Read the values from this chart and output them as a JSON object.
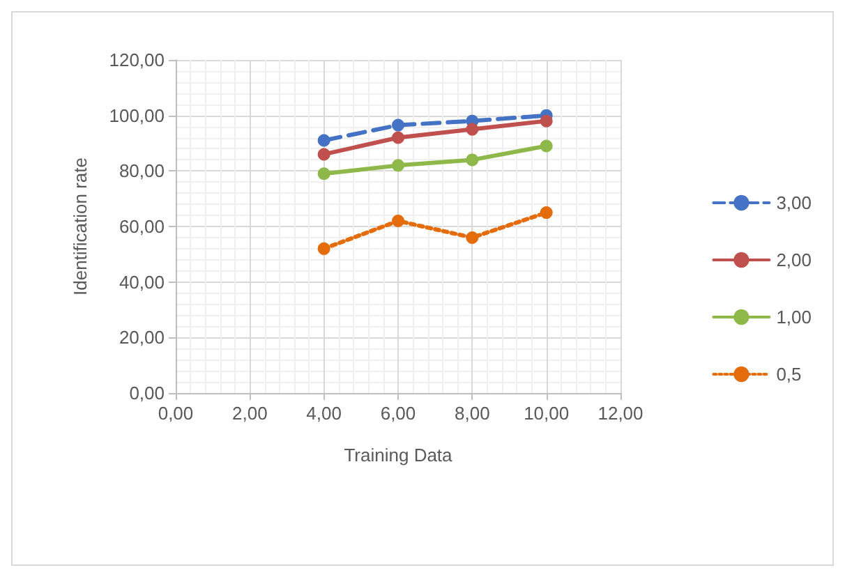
{
  "chart_data": {
    "type": "line",
    "xlabel": "Training Data",
    "ylabel": "Identification rate",
    "x": [
      4,
      6,
      8,
      10
    ],
    "series": [
      {
        "name": "3,00",
        "color": "#4472c4",
        "line_style": "dashed",
        "values": [
          91,
          96.5,
          98,
          100
        ]
      },
      {
        "name": "2,00",
        "color": "#c0504d",
        "line_style": "solid",
        "values": [
          86,
          92,
          95,
          98
        ]
      },
      {
        "name": "1,00",
        "color": "#8fb84a",
        "line_style": "solid",
        "values": [
          79,
          82,
          84,
          89
        ]
      },
      {
        "name": "0,5",
        "color": "#e46c0a",
        "line_style": "dotted",
        "values": [
          52,
          62,
          56,
          65
        ]
      }
    ],
    "xlim": [
      0,
      12
    ],
    "xticks": [
      {
        "value": 0,
        "label": "0,00"
      },
      {
        "value": 2,
        "label": "2,00"
      },
      {
        "value": 4,
        "label": "4,00"
      },
      {
        "value": 6,
        "label": "6,00"
      },
      {
        "value": 8,
        "label": "8,00"
      },
      {
        "value": 10,
        "label": "10,00"
      },
      {
        "value": 12,
        "label": "12,00"
      }
    ],
    "ylim": [
      0,
      120
    ],
    "yticks": [
      {
        "value": 0,
        "label": "0,00"
      },
      {
        "value": 20,
        "label": "20,00"
      },
      {
        "value": 40,
        "label": "40,00"
      },
      {
        "value": 60,
        "label": "60,00"
      },
      {
        "value": 80,
        "label": "80,00"
      },
      {
        "value": 100,
        "label": "100,00"
      },
      {
        "value": 120,
        "label": "120,00"
      }
    ],
    "grid": true,
    "legend": "right",
    "marker": "circle"
  }
}
